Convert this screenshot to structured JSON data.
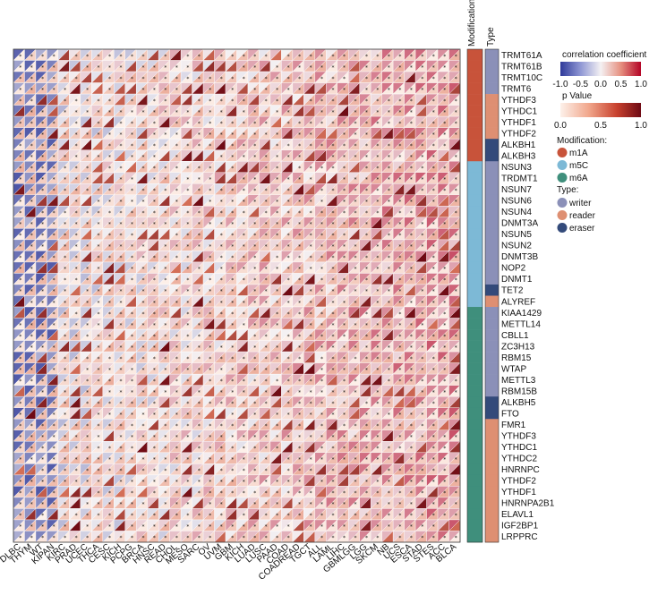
{
  "chart_data": {
    "type": "heatmap",
    "subtype": "split-triangle correlation heatmap",
    "description_of_cells": "upper-left triangle: correlation coefficient; lower-right triangle: p value; star marks significance",
    "cancers": [
      "DLBC",
      "THYM",
      "WT",
      "KIPAN",
      "KIRC",
      "PRAD",
      "UCEC",
      "THCA",
      "CESC",
      "KICH",
      "PCPG",
      "BRCA",
      "HNSC",
      "READ",
      "CHOL",
      "MESO",
      "SARC",
      "OV",
      "UVM",
      "GBM",
      "KICH",
      "LUAD",
      "LUSC",
      "PAAD",
      "COAD",
      "COADREAD",
      "TGCT",
      "ALL",
      "LAML",
      "LIHC",
      "GBMLGG",
      "LGG",
      "SKCM",
      "NB",
      "UCS",
      "ESCA",
      "STAD",
      "STES",
      "ACC",
      "BLCA"
    ],
    "genes": [
      "TRMT61A",
      "TRMT61B",
      "TRMT10C",
      "TRMT6",
      "YTHDF3",
      "YTHDC1",
      "YTHDF1",
      "YTHDF2",
      "ALKBH1",
      "ALKBH3",
      "NSUN3",
      "TRDMT1",
      "NSUN7",
      "NSUN6",
      "NSUN4",
      "DNMT3A",
      "NSUN5",
      "NSUN2",
      "DNMT3B",
      "NOP2",
      "DNMT1",
      "TET2",
      "ALYREF",
      "KIAA1429",
      "METTL14",
      "CBLL1",
      "ZC3H13",
      "RBM15",
      "WTAP",
      "METTL3",
      "RBM15B",
      "ALKBH5",
      "FTO",
      "FMR1",
      "YTHDF3",
      "YTHDC1",
      "YTHDC2",
      "HNRNPC",
      "YTHDF2",
      "YTHDF1",
      "HNRNPA2B1",
      "ELAVL1",
      "IGF2BP1",
      "LRPPRC"
    ],
    "modification": [
      "m1A",
      "m1A",
      "m1A",
      "m1A",
      "m1A",
      "m1A",
      "m1A",
      "m1A",
      "m1A",
      "m1A",
      "m5C",
      "m5C",
      "m5C",
      "m5C",
      "m5C",
      "m5C",
      "m5C",
      "m5C",
      "m5C",
      "m5C",
      "m5C",
      "m5C",
      "m5C",
      "m6A",
      "m6A",
      "m6A",
      "m6A",
      "m6A",
      "m6A",
      "m6A",
      "m6A",
      "m6A",
      "m6A",
      "m6A",
      "m6A",
      "m6A",
      "m6A",
      "m6A",
      "m6A",
      "m6A",
      "m6A",
      "m6A",
      "m6A",
      "m6A"
    ],
    "type_annotation": [
      "writer",
      "writer",
      "writer",
      "writer",
      "reader",
      "reader",
      "reader",
      "reader",
      "eraser",
      "eraser",
      "writer",
      "writer",
      "writer",
      "writer",
      "writer",
      "writer",
      "writer",
      "writer",
      "writer",
      "writer",
      "writer",
      "eraser",
      "reader",
      "writer",
      "writer",
      "writer",
      "writer",
      "writer",
      "writer",
      "writer",
      "writer",
      "eraser",
      "eraser",
      "reader",
      "reader",
      "reader",
      "reader",
      "reader",
      "reader",
      "reader",
      "reader",
      "reader",
      "reader",
      "reader"
    ],
    "annotation_headers": [
      "Modification",
      "Type"
    ],
    "correlation_range": [
      -1,
      1
    ],
    "correlation_ticks": [
      "-1.0",
      "-0.5",
      "0.0",
      "0.5",
      "1.0"
    ],
    "pvalue_range": [
      0,
      1
    ],
    "pvalue_ticks": [
      "0.0",
      "0.5",
      "1.0"
    ],
    "significance_mark": "*",
    "seed_note": "cell values estimated from colour; rendered procedurally by gene/cancer row-column pattern"
  },
  "legend": {
    "corr_title": "correlation coefficient",
    "p_title": "p Value",
    "modification_title": "Modification:",
    "modification_items": [
      {
        "label": "m1A",
        "color": "#c8533a"
      },
      {
        "label": "m5C",
        "color": "#7db9d6"
      },
      {
        "label": "m6A",
        "color": "#3f8f7c"
      }
    ],
    "type_title": "Type:",
    "type_items": [
      {
        "label": "writer",
        "color": "#8b90b8"
      },
      {
        "label": "reader",
        "color": "#de8f72"
      },
      {
        "label": "eraser",
        "color": "#334a7a"
      }
    ]
  },
  "colors": {
    "neg": "#3b4cc0",
    "pos": "#b40426",
    "p_high": "#7a0c16",
    "p_low": "#fdf1ea"
  }
}
